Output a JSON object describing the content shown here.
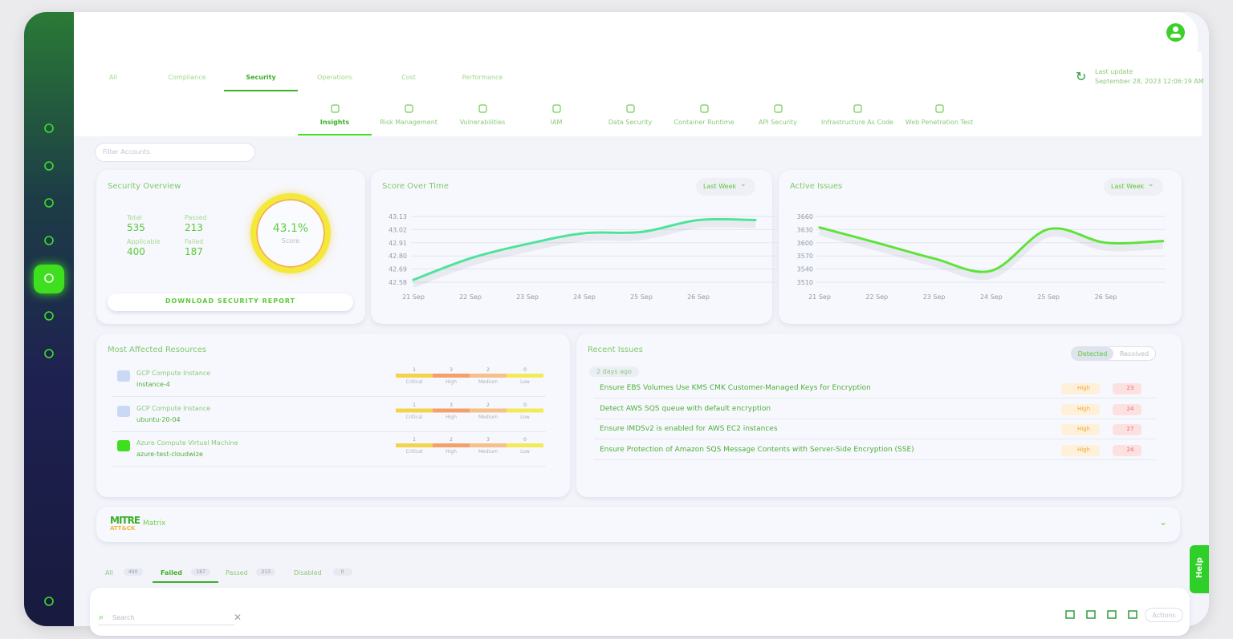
{
  "tabs": [
    "All",
    "Compliance",
    "Security",
    "Operations",
    "Cost",
    "Performance"
  ],
  "last_update": {
    "label": "Last update",
    "date": "September 28, 2023 12:06:19 AM"
  },
  "subtabs": [
    "Insights",
    "Risk Management",
    "Vulnerabilities",
    "IAM",
    "Data Security",
    "Container Runtime",
    "API Security",
    "Infrastructure As Code",
    "Web Penetration Test"
  ],
  "filter_placeholder": "Filter Accounts",
  "security_overview": {
    "title": "Security Overview",
    "stats": [
      {
        "label": "Total",
        "value": 535
      },
      {
        "label": "Passed",
        "value": 213
      },
      {
        "label": "Applicable",
        "value": 400
      },
      {
        "label": "Failed",
        "value": 187
      }
    ],
    "score": {
      "value": "43.1%",
      "label": "Score"
    },
    "download": "DOWNLOAD SECURITY REPORT"
  },
  "chart_data": [
    {
      "type": "line",
      "title": "Score Over Time",
      "dropdown": "Last Week",
      "categories": [
        "21 Sep",
        "22 Sep",
        "23 Sep",
        "24 Sep",
        "25 Sep",
        "26 Sep",
        null
      ],
      "values": [
        42.6,
        42.78,
        42.9,
        42.99,
        43.0,
        43.1,
        43.1
      ],
      "color": "#4fe39a",
      "ylim": [
        42.58,
        43.13
      ],
      "yticks": [
        {
          "value": 42.58,
          "label": "42.58"
        },
        {
          "value": 42.69,
          "label": "42.69"
        },
        {
          "value": 42.8,
          "label": "42.80"
        },
        {
          "value": 42.91,
          "label": "42.91"
        },
        {
          "value": 43.02,
          "label": "43.02"
        },
        {
          "value": 43.13,
          "label": "43.13"
        }
      ],
      "grid": true
    },
    {
      "type": "line",
      "title": "Active Issues",
      "dropdown": "Last Week",
      "categories": [
        "21 Sep",
        "22 Sep",
        "23 Sep",
        "24 Sep",
        "25 Sep",
        "26 Sep",
        null
      ],
      "values": [
        3635,
        3600,
        3564,
        3536,
        3631,
        3600,
        3604
      ],
      "color": "#5ee33a",
      "ylim": [
        3510,
        3660
      ],
      "yticks": [
        3510,
        3540,
        3570,
        3600,
        3630,
        3660
      ],
      "grid": true
    }
  ],
  "resources": {
    "title": "Most Affected Resources",
    "levels": [
      "Critical",
      "High",
      "Medium",
      "Low"
    ],
    "items": [
      {
        "type": "GCP Compute Instance",
        "name": "instance-4",
        "counts": [
          1,
          3,
          2,
          0
        ]
      },
      {
        "type": "GCP Compute Instance",
        "name": "ubuntu-20-04",
        "counts": [
          1,
          3,
          2,
          0
        ]
      },
      {
        "type": "Azure Compute Virtual Machine",
        "name": "azure-test-cloudwize",
        "counts": [
          1,
          2,
          3,
          0
        ]
      }
    ]
  },
  "recent_issues": {
    "title": "Recent Issues",
    "toggle": [
      "Detected",
      "Resolved"
    ],
    "group": "2 days ago",
    "items": [
      {
        "text": "Ensure EBS Volumes Use KMS CMK Customer-Managed Keys for Encryption",
        "severity": "High",
        "count": 23
      },
      {
        "text": "Detect AWS SQS queue with default encryption",
        "severity": "High",
        "count": 24
      },
      {
        "text": "Ensure IMDSv2 is enabled for AWS EC2 instances",
        "severity": "High",
        "count": 27
      },
      {
        "text": "Ensure Protection of Amazon SQS Message Contents with Server-Side Encryption (SSE)",
        "severity": "High",
        "count": 24
      }
    ]
  },
  "mitre": {
    "logo_top": "MITRE",
    "logo_bottom": "ATT&CK",
    "label": "Matrix"
  },
  "filters": [
    {
      "label": "All",
      "count": 400
    },
    {
      "label": "Failed",
      "count": 187
    },
    {
      "label": "Passed",
      "count": 213
    },
    {
      "label": "Disabled",
      "count": 0
    }
  ],
  "search_placeholder": "Search",
  "actions": "Actions",
  "help": "Help"
}
